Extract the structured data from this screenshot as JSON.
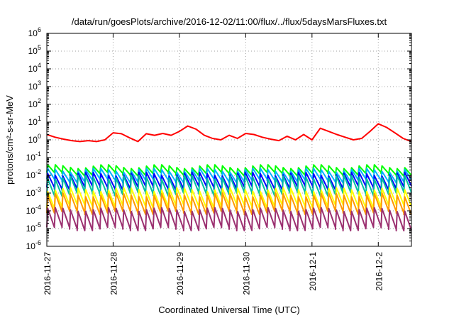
{
  "chart_data": {
    "type": "line",
    "title": "/data/run/goesPlots/archive/2016-12-02/11:00/flux/../flux/5daysMarsFluxes.txt",
    "xlabel": "Coordinated Universal Time (UTC)",
    "ylabel": "protons/cm²-s-sr-MeV",
    "yscale": "log",
    "ylim": [
      1e-06,
      1000000.0
    ],
    "xlim": [
      "2016-11-27",
      "2016-12-02T12:00"
    ],
    "x_tick_labels": [
      "2016-11-27",
      "2016-11-28",
      "2016-11-29",
      "2016-11-30",
      "2016-12-1",
      "2016-12-2"
    ],
    "y_ticks": [
      {
        "base": "10",
        "exp": "6",
        "value": 1000000.0
      },
      {
        "base": "10",
        "exp": "5",
        "value": 100000.0
      },
      {
        "base": "10",
        "exp": "4",
        "value": 10000.0
      },
      {
        "base": "10",
        "exp": "3",
        "value": 1000.0
      },
      {
        "base": "10",
        "exp": "2",
        "value": 100.0
      },
      {
        "base": "10",
        "exp": "1",
        "value": 10.0
      },
      {
        "base": "10",
        "exp": "0",
        "value": 1.0
      },
      {
        "base": "10",
        "exp": "-1",
        "value": 0.1
      },
      {
        "base": "10",
        "exp": "-2",
        "value": 0.01
      },
      {
        "base": "10",
        "exp": "-3",
        "value": 0.001
      },
      {
        "base": "10",
        "exp": "-4",
        "value": 0.0001
      },
      {
        "base": "10",
        "exp": "-5",
        "value": 1e-05
      },
      {
        "base": "10",
        "exp": "-6",
        "value": 1e-06
      }
    ],
    "grid": true,
    "series": [
      {
        "color": "#ff0000",
        "x": [
          "2016-11-27T00:00",
          "2016-11-27T03:00",
          "2016-11-27T06:00",
          "2016-11-27T09:00",
          "2016-11-27T12:00",
          "2016-11-27T15:00",
          "2016-11-27T18:00",
          "2016-11-27T21:00",
          "2016-11-28T00:00",
          "2016-11-28T03:00",
          "2016-11-28T06:00",
          "2016-11-28T09:00",
          "2016-11-28T12:00",
          "2016-11-28T15:00",
          "2016-11-28T18:00",
          "2016-11-28T21:00",
          "2016-11-29T00:00",
          "2016-11-29T03:00",
          "2016-11-29T06:00",
          "2016-11-29T09:00",
          "2016-11-29T12:00",
          "2016-11-29T15:00",
          "2016-11-29T18:00",
          "2016-11-29T21:00",
          "2016-11-30T00:00",
          "2016-11-30T03:00",
          "2016-11-30T06:00",
          "2016-11-30T09:00",
          "2016-11-30T12:00",
          "2016-11-30T15:00",
          "2016-11-30T18:00",
          "2016-11-30T21:00",
          "2016-12-01T00:00",
          "2016-12-01T03:00",
          "2016-12-01T06:00",
          "2016-12-01T09:00",
          "2016-12-01T12:00",
          "2016-12-01T15:00",
          "2016-12-01T18:00",
          "2016-12-01T21:00",
          "2016-12-02T00:00",
          "2016-12-02T03:00",
          "2016-12-02T06:00",
          "2016-12-02T09:00",
          "2016-12-02T12:00"
        ],
        "y": [
          2.0,
          1.4,
          1.1,
          0.9,
          0.8,
          0.9,
          0.8,
          1.0,
          2.5,
          2.2,
          1.3,
          0.8,
          2.2,
          1.8,
          2.3,
          1.8,
          3.0,
          6.0,
          4.0,
          1.8,
          1.2,
          1.0,
          1.8,
          1.2,
          2.3,
          2.0,
          1.4,
          1.1,
          0.9,
          1.6,
          1.0,
          2.0,
          1.0,
          4.5,
          3.0,
          2.0,
          1.4,
          1.0,
          1.2,
          3.0,
          8.0,
          5.0,
          2.5,
          1.2,
          0.8
        ]
      },
      {
        "color": "#00ff00",
        "base": 0.015,
        "peak": 0.032,
        "trough": 0.012
      },
      {
        "color": "#00b3ff",
        "base": 0.008,
        "peak": 0.02,
        "trough": 0.005
      },
      {
        "color": "#0000ff",
        "base": 0.004,
        "peak": 0.012,
        "trough": 0.002
      },
      {
        "color": "#00bfa0",
        "base": 0.002,
        "peak": 0.008,
        "trough": 0.0009
      },
      {
        "color": "#ffff00",
        "base": 0.0004,
        "peak": 0.0016,
        "trough": 0.00018
      },
      {
        "color": "#ff9900",
        "base": 0.0002,
        "peak": 0.0008,
        "trough": 8e-05
      },
      {
        "color": "#9b3070",
        "base": 4e-05,
        "peak": 0.00012,
        "trough": 1e-05
      }
    ],
    "sawtooth_cycles": 48
  }
}
